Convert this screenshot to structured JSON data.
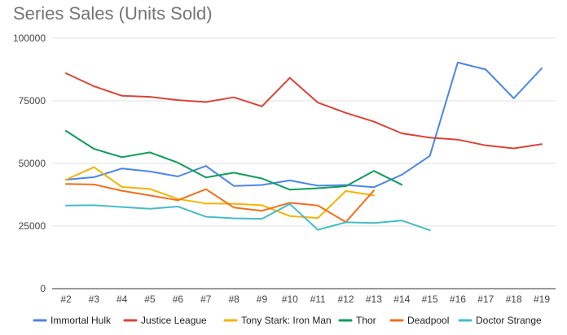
{
  "chart_data": {
    "type": "line",
    "title": "Series Sales (Units Sold)",
    "xlabel": "",
    "ylabel": "",
    "ylim": [
      0,
      100000
    ],
    "yticks": [
      0,
      25000,
      50000,
      75000,
      100000
    ],
    "grid": true,
    "legend": "bottom",
    "categories": [
      "#2",
      "#3",
      "#4",
      "#5",
      "#6",
      "#7",
      "#8",
      "#9",
      "#10",
      "#11",
      "#12",
      "#13",
      "#14",
      "#15",
      "#16",
      "#17",
      "#18",
      "#19"
    ],
    "series": [
      {
        "name": "Immortal Hulk",
        "color": "#4a86e8",
        "values": [
          43500,
          44500,
          48000,
          46800,
          44800,
          49000,
          41000,
          41400,
          43200,
          41100,
          41400,
          40500,
          45500,
          53000,
          90300,
          87500,
          76000,
          88000
        ]
      },
      {
        "name": "Justice League",
        "color": "#db4437",
        "values": [
          86000,
          80800,
          77000,
          76600,
          75300,
          74500,
          76400,
          72800,
          84200,
          74300,
          70200,
          66700,
          62000,
          60300,
          59500,
          57200,
          56000,
          57700
        ]
      },
      {
        "name": "Tony Stark: Iron Man",
        "color": "#f4b400",
        "values": [
          43500,
          48500,
          40600,
          39800,
          35800,
          34000,
          33900,
          33300,
          29000,
          28200,
          39000,
          37200,
          null,
          null,
          null,
          null,
          null,
          null
        ]
      },
      {
        "name": "Thor",
        "color": "#0f9d58",
        "values": [
          63000,
          55800,
          52500,
          54400,
          50300,
          44400,
          46300,
          44000,
          39500,
          40100,
          40900,
          47000,
          41500,
          null,
          null,
          null,
          null,
          null
        ]
      },
      {
        "name": "Deadpool",
        "color": "#f16f1b",
        "values": [
          41800,
          41600,
          39100,
          37200,
          35300,
          39700,
          32400,
          31100,
          34300,
          33200,
          26600,
          39200,
          null,
          null,
          null,
          null,
          null,
          null
        ]
      },
      {
        "name": "Doctor Strange",
        "color": "#46bdc6",
        "values": [
          33200,
          33300,
          32600,
          31900,
          32800,
          28700,
          28100,
          27900,
          33800,
          23500,
          26500,
          26200,
          27200,
          23300,
          null,
          null,
          null,
          null
        ]
      }
    ]
  }
}
